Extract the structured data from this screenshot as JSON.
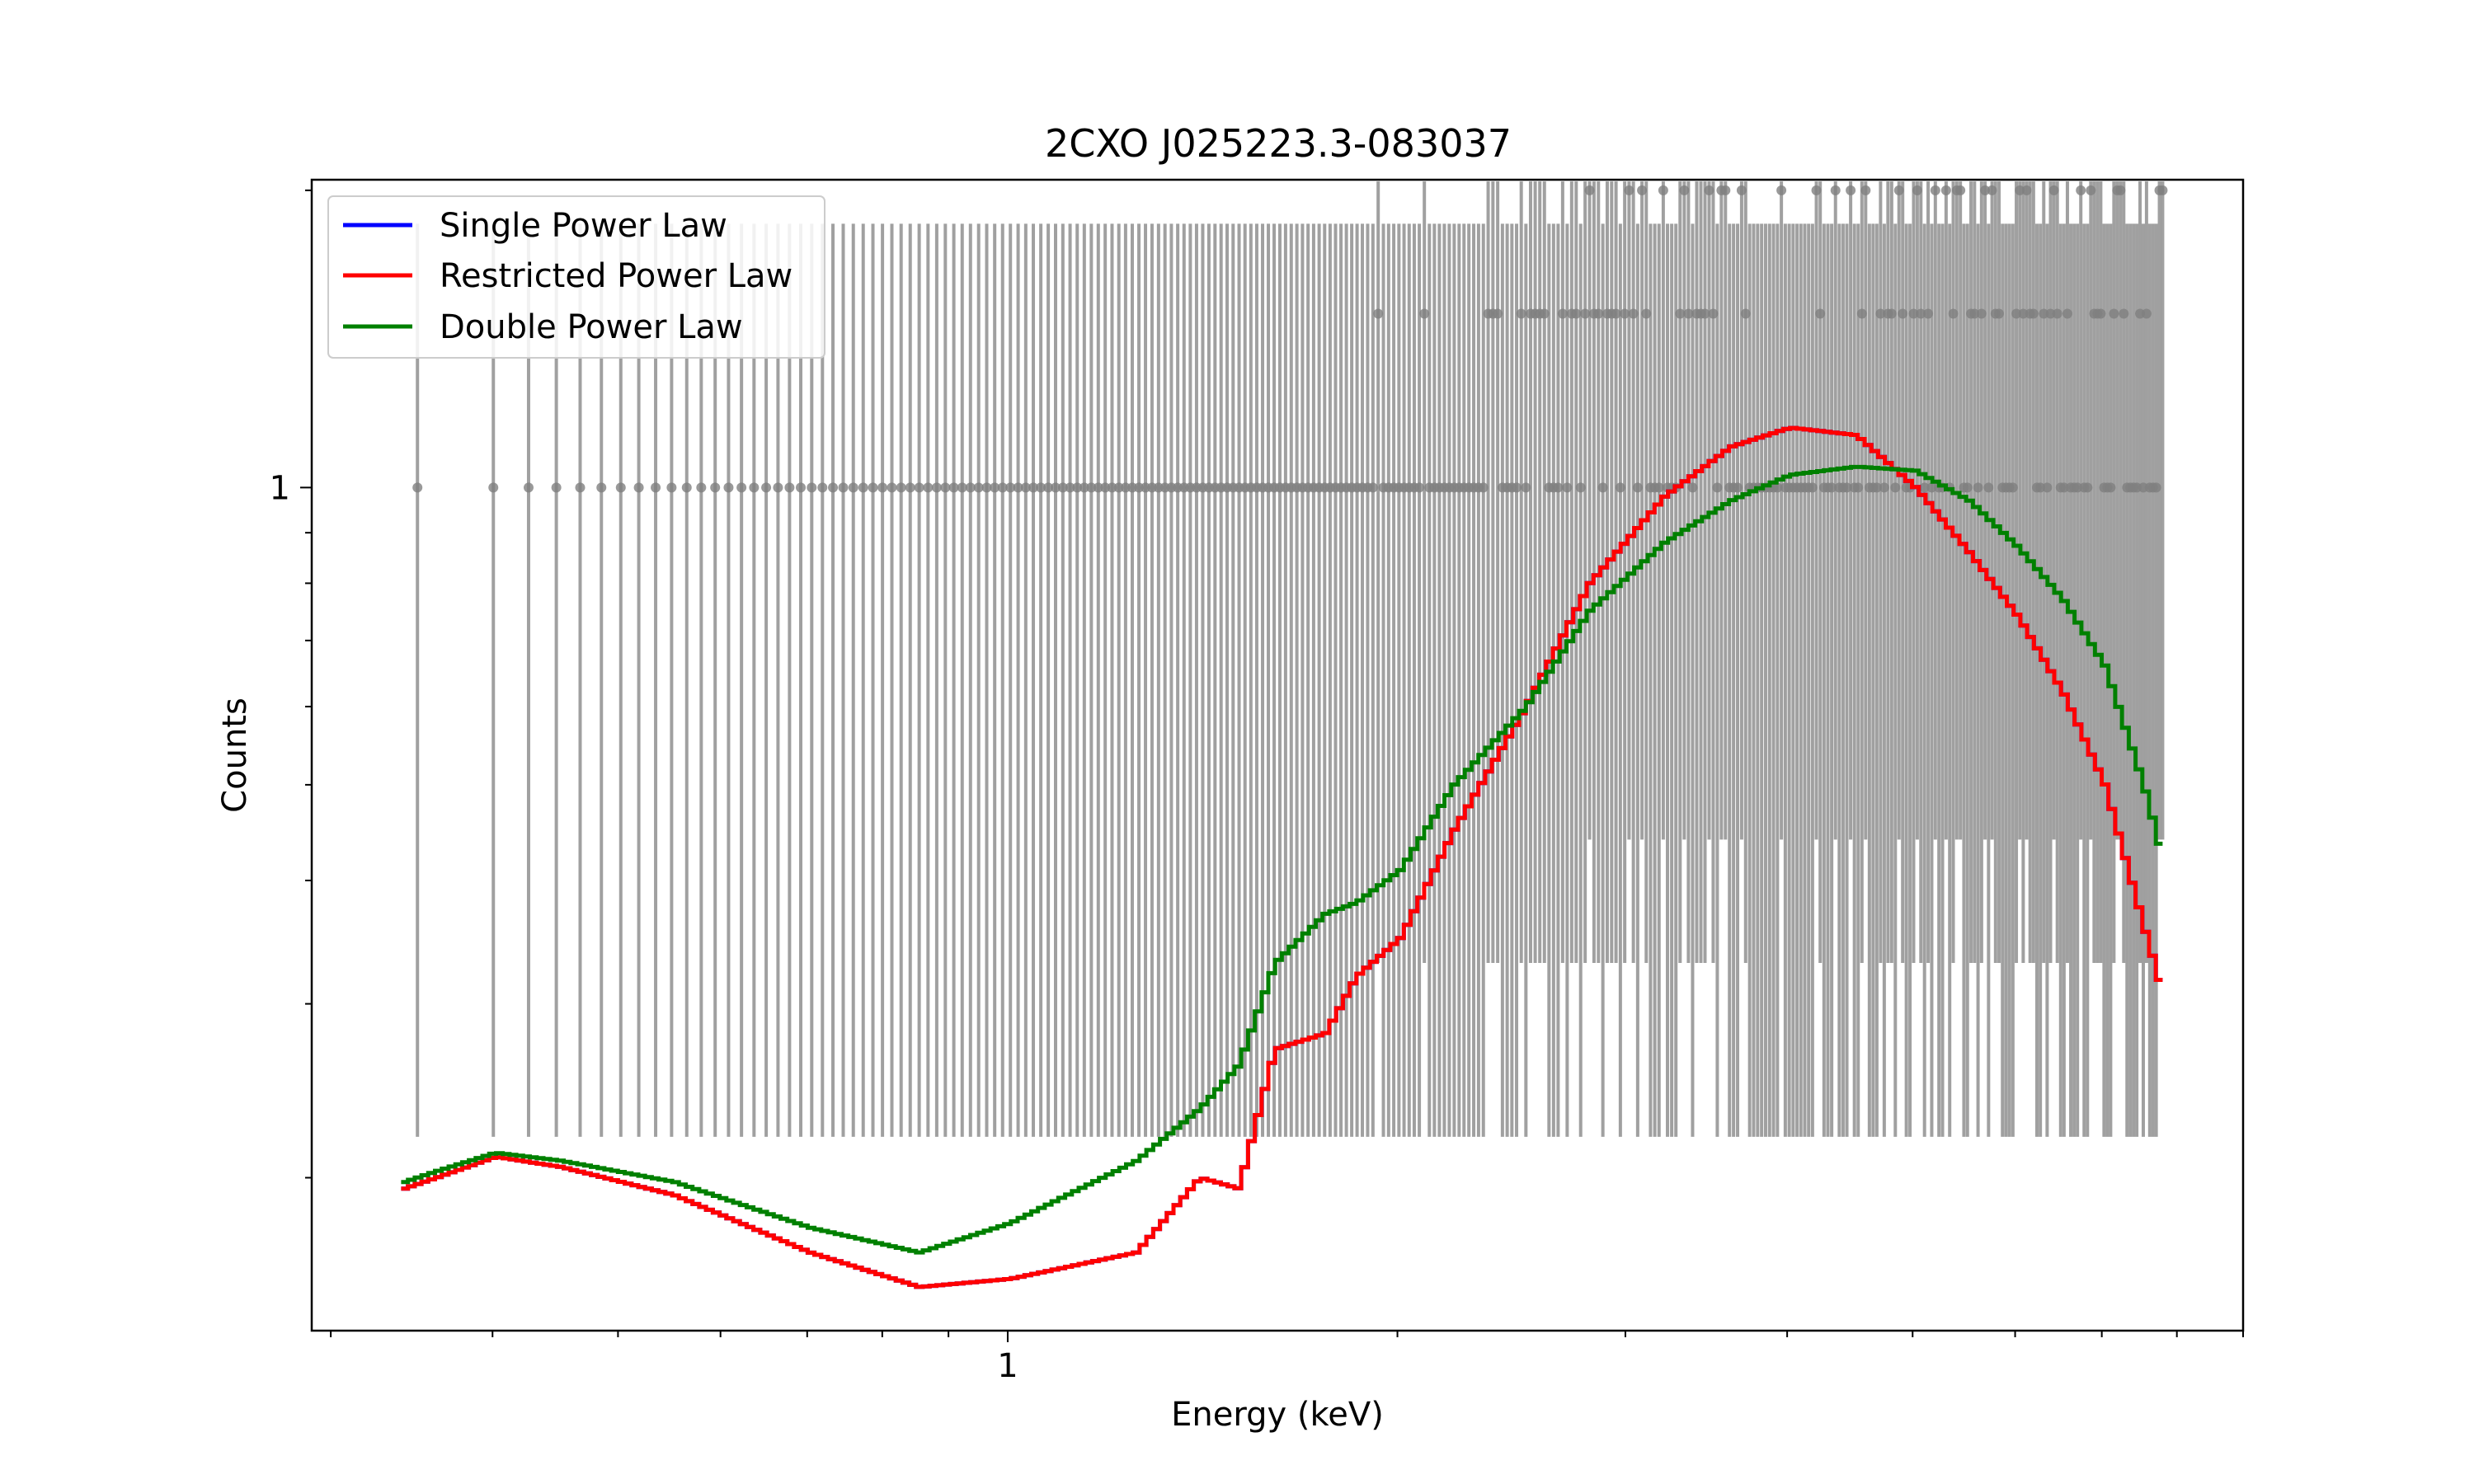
{
  "chart_data": {
    "type": "line",
    "title": "2CXO J025223.3-083037",
    "xlabel": "Energy (keV)",
    "ylabel": "Counts",
    "xscale": "log",
    "yscale": "log",
    "xlim": [
      0.29,
      9.0
    ],
    "ylim": [
      0.14,
      2.05
    ],
    "xticks": [
      {
        "value": 1,
        "label": "1"
      }
    ],
    "yticks": [
      {
        "value": 1,
        "label": "1"
      }
    ],
    "legend": {
      "placement": "top-left",
      "entries": [
        {
          "label": "Single Power Law",
          "color": "#0000ff"
        },
        {
          "label": "Restricted Power Law",
          "color": "#ff0000"
        },
        {
          "label": "Double Power Law",
          "color": "#008000"
        }
      ]
    },
    "data_points": {
      "name": "",
      "color": "#808080",
      "x_range": [
        0.35,
        7.8
      ],
      "low_energy_value": 1,
      "high_energy_values": [
        1,
        1.5,
        2
      ]
    },
    "series": [
      {
        "name": "Single Power Law",
        "color": "#0000ff",
        "x": [
          0.34,
          0.36,
          0.4,
          0.45,
          0.55,
          0.7,
          0.85,
          1.0,
          1.25,
          1.4,
          1.5,
          1.6,
          1.75,
          1.85,
          2.0,
          2.2,
          2.5,
          2.8,
          3.2,
          3.6,
          4.0,
          4.5,
          5.0,
          5.5,
          6.0,
          6.5,
          7.0,
          7.5,
          7.8
        ],
        "y": [
          0.195,
          0.2,
          0.21,
          0.205,
          0.192,
          0.168,
          0.155,
          0.158,
          0.168,
          0.2,
          0.195,
          0.27,
          0.28,
          0.32,
          0.35,
          0.45,
          0.6,
          0.8,
          0.98,
          1.1,
          1.15,
          1.13,
          1.0,
          0.86,
          0.74,
          0.62,
          0.5,
          0.36,
          0.3
        ]
      },
      {
        "name": "Restricted Power Law",
        "color": "#ff0000",
        "x": [
          0.34,
          0.36,
          0.4,
          0.45,
          0.55,
          0.7,
          0.85,
          1.0,
          1.25,
          1.4,
          1.5,
          1.6,
          1.75,
          1.85,
          2.0,
          2.2,
          2.5,
          2.8,
          3.2,
          3.6,
          4.0,
          4.5,
          5.0,
          5.5,
          6.0,
          6.5,
          7.0,
          7.5,
          7.8
        ],
        "y": [
          0.195,
          0.2,
          0.21,
          0.205,
          0.192,
          0.168,
          0.155,
          0.158,
          0.168,
          0.2,
          0.195,
          0.27,
          0.28,
          0.32,
          0.35,
          0.45,
          0.6,
          0.8,
          0.98,
          1.1,
          1.15,
          1.13,
          1.0,
          0.86,
          0.74,
          0.62,
          0.5,
          0.36,
          0.3
        ]
      },
      {
        "name": "Double Power Law",
        "color": "#008000",
        "x": [
          0.34,
          0.36,
          0.4,
          0.45,
          0.55,
          0.7,
          0.85,
          1.0,
          1.25,
          1.4,
          1.5,
          1.6,
          1.75,
          1.85,
          2.0,
          2.2,
          2.5,
          2.8,
          3.2,
          3.6,
          4.0,
          4.5,
          5.0,
          5.5,
          6.0,
          6.5,
          7.0,
          7.5,
          7.8
        ],
        "y": [
          0.198,
          0.203,
          0.212,
          0.208,
          0.198,
          0.178,
          0.168,
          0.18,
          0.208,
          0.235,
          0.26,
          0.33,
          0.37,
          0.38,
          0.41,
          0.5,
          0.6,
          0.75,
          0.88,
          0.97,
          1.03,
          1.05,
          1.04,
          0.97,
          0.87,
          0.77,
          0.66,
          0.5,
          0.41
        ]
      }
    ]
  }
}
